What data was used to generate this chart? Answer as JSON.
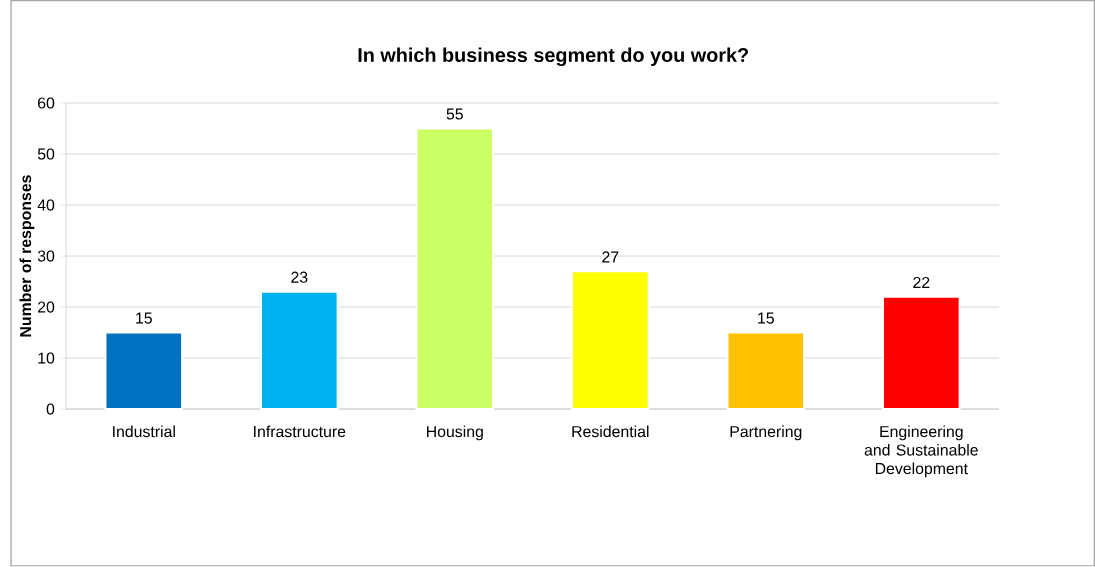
{
  "chart_data": {
    "type": "bar",
    "title": "In which business segment do you work?",
    "ylabel": "Number of responses",
    "categories": [
      "Industrial",
      "Infrastructure",
      "Housing",
      "Residential",
      "Partnering",
      "Engineering and Sustainable Development"
    ],
    "values": [
      15,
      23,
      55,
      27,
      15,
      22
    ],
    "colors": [
      "#0070c0",
      "#00b0f0",
      "#ccff66",
      "#ffff00",
      "#ffc000",
      "#ff0000"
    ],
    "ylim": [
      0,
      60
    ],
    "yticks": [
      0,
      10,
      20,
      30,
      40,
      50,
      60
    ],
    "grid": "y",
    "data_labels": true
  }
}
